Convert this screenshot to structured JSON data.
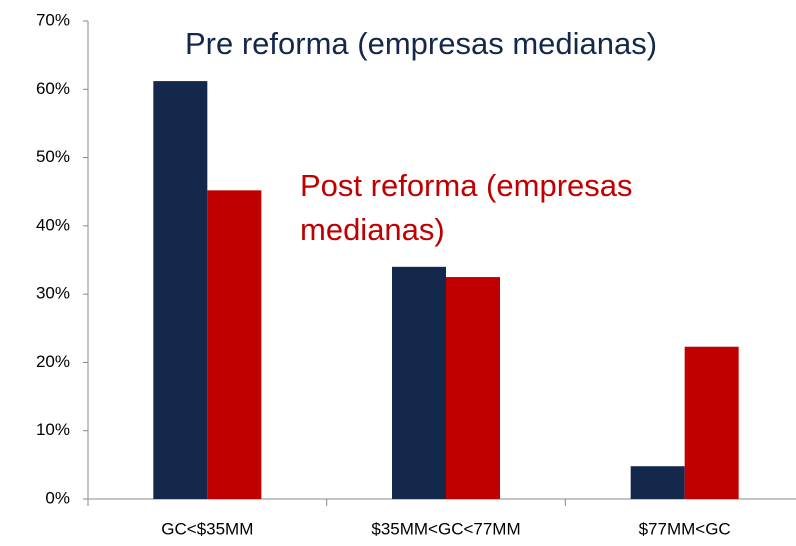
{
  "chart_data": {
    "type": "bar",
    "categories": [
      "GC<$35MM",
      "$35MM<GC<77MM",
      "$77MM<GC"
    ],
    "series": [
      {
        "name": "Pre reforma (empresas medianas)",
        "color": "#14284b",
        "values": [
          61.2,
          34.0,
          4.8
        ]
      },
      {
        "name": "Post reforma (empresas medianas)",
        "color": "#c00000",
        "values": [
          45.2,
          32.5,
          22.3
        ]
      }
    ],
    "ylim": [
      0,
      70
    ],
    "yticks": [
      {
        "value": 0,
        "label": "0%"
      },
      {
        "value": 10,
        "label": "10%"
      },
      {
        "value": 20,
        "label": "20%"
      },
      {
        "value": 30,
        "label": "30%"
      },
      {
        "value": 40,
        "label": "40%"
      },
      {
        "value": 50,
        "label": "50%"
      },
      {
        "value": 60,
        "label": "60%"
      },
      {
        "value": 70,
        "label": "70%"
      }
    ]
  }
}
